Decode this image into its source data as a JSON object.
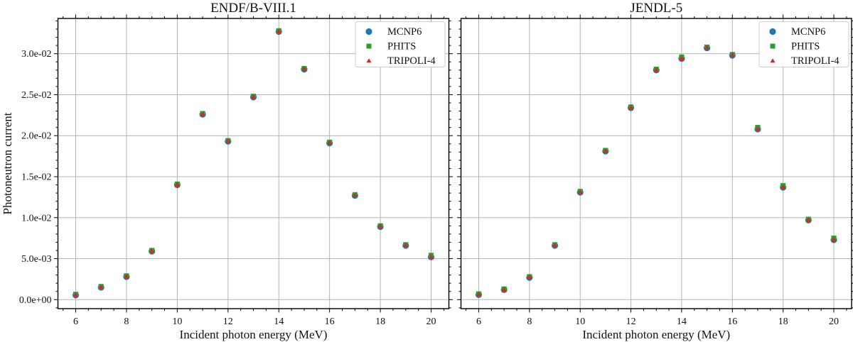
{
  "ylabel": "Photoneutron current",
  "xlabel": "Incident photon energy (MeV)",
  "axes": {
    "x_tick_labels": [
      "6",
      "8",
      "10",
      "12",
      "14",
      "16",
      "18",
      "20"
    ],
    "x_major_ticks": [
      6,
      8,
      10,
      12,
      14,
      16,
      18,
      20
    ],
    "y_tick_labels": [
      "0.0e+00",
      "5.0e-03",
      "1.0e-02",
      "1.5e-02",
      "2.0e-02",
      "2.5e-02",
      "3.0e-02"
    ],
    "y_major_ticks": [
      0,
      0.005,
      0.01,
      0.015,
      0.02,
      0.025,
      0.03
    ],
    "x_minor_step": 0.5,
    "y_minor_step": 0.001,
    "grid_color": "#b4b4b4",
    "spine_color": "#000000"
  },
  "legend": {
    "items": [
      {
        "label": "MCNP6",
        "marker": "circle",
        "color": "#1f77b4"
      },
      {
        "label": "PHITS",
        "marker": "square",
        "color": "#2ca02c"
      },
      {
        "label": "TRIPOLI-4",
        "marker": "triangle",
        "color": "#d62728"
      }
    ]
  },
  "chart_data": [
    {
      "type": "scatter",
      "title": "ENDF/B-VIII.1",
      "xlabel": "Incident photon energy (MeV)",
      "ylabel": "Photoneutron current",
      "x": [
        6,
        7,
        8,
        9,
        10,
        11,
        12,
        13,
        14,
        15,
        16,
        17,
        18,
        19,
        20
      ],
      "series": [
        {
          "name": "MCNP6",
          "marker": "circle",
          "color": "#1f77b4",
          "values": [
            0.00055,
            0.0015,
            0.0028,
            0.0059,
            0.014,
            0.0226,
            0.0193,
            0.0247,
            0.0327,
            0.0281,
            0.0191,
            0.0127,
            0.0089,
            0.0066,
            0.0052
          ]
        },
        {
          "name": "PHITS",
          "marker": "square",
          "color": "#2ca02c",
          "values": [
            0.00065,
            0.0016,
            0.0029,
            0.006,
            0.0141,
            0.0227,
            0.0194,
            0.0248,
            0.0328,
            0.0282,
            0.0192,
            0.0128,
            0.009,
            0.0067,
            0.0054
          ]
        },
        {
          "name": "TRIPOLI-4",
          "marker": "triangle",
          "color": "#d62728",
          "values": [
            0.00055,
            0.0015,
            0.0028,
            0.0059,
            0.014,
            0.0226,
            0.0193,
            0.0247,
            0.0327,
            0.0281,
            0.0191,
            0.0127,
            0.0089,
            0.0066,
            0.0052
          ]
        }
      ],
      "xlim": [
        5.3,
        20.7
      ],
      "ylim": [
        -0.0011,
        0.0343
      ],
      "grid": true,
      "legend_position": "upper right"
    },
    {
      "type": "scatter",
      "title": "JENDL-5",
      "xlabel": "Incident photon energy (MeV)",
      "ylabel": "Photoneutron current",
      "x": [
        6,
        7,
        8,
        9,
        10,
        11,
        12,
        13,
        14,
        15,
        16,
        17,
        18,
        19,
        20
      ],
      "series": [
        {
          "name": "MCNP6",
          "marker": "circle",
          "color": "#1f77b4",
          "values": [
            0.0006,
            0.0012,
            0.0027,
            0.0066,
            0.0131,
            0.0181,
            0.0234,
            0.028,
            0.0294,
            0.0307,
            0.0298,
            0.0208,
            0.0137,
            0.0097,
            0.0073
          ]
        },
        {
          "name": "PHITS",
          "marker": "square",
          "color": "#2ca02c",
          "values": [
            0.0007,
            0.0013,
            0.0028,
            0.0067,
            0.0132,
            0.0182,
            0.0235,
            0.0281,
            0.0296,
            0.0308,
            0.0299,
            0.021,
            0.0139,
            0.0098,
            0.0075
          ]
        },
        {
          "name": "TRIPOLI-4",
          "marker": "triangle",
          "color": "#d62728",
          "values": [
            0.0006,
            0.0012,
            0.0027,
            0.0066,
            0.0131,
            0.0181,
            0.0234,
            0.028,
            0.0294,
            0.0307,
            0.0298,
            0.0208,
            0.0137,
            0.0097,
            0.0073
          ]
        }
      ],
      "xlim": [
        5.3,
        20.7
      ],
      "ylim": [
        -0.0011,
        0.0343
      ],
      "grid": true,
      "legend_position": "upper right"
    }
  ]
}
